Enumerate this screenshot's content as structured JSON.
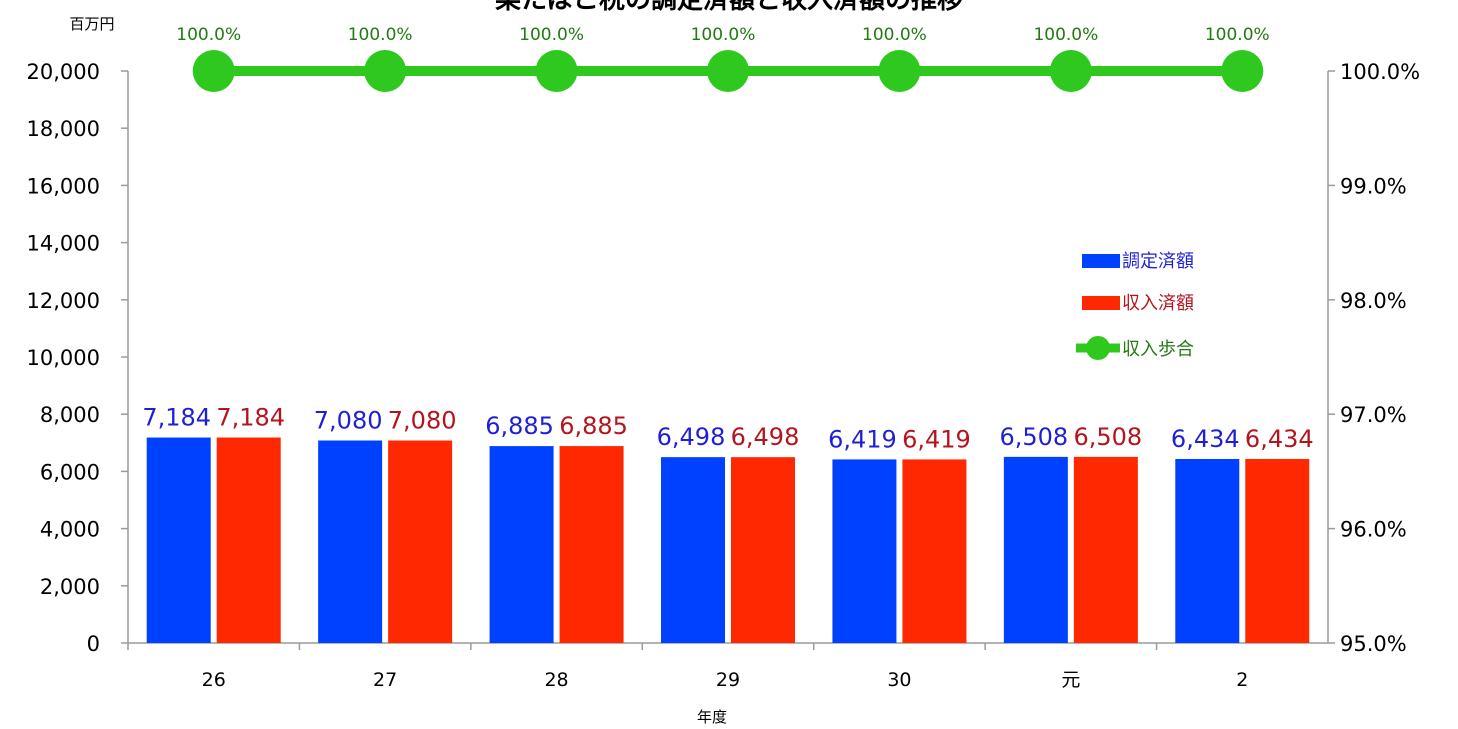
{
  "chart_data": {
    "type": "bar",
    "title": "栗たばこ税の調定済額と収入済額の推移",
    "xlabel": "年度",
    "ylabel": "百万円",
    "categories": [
      "26",
      "27",
      "28",
      "29",
      "30",
      "元",
      "2"
    ],
    "ylim": [
      0,
      20000
    ],
    "yticks": [
      0,
      2000,
      4000,
      6000,
      8000,
      10000,
      12000,
      14000,
      16000,
      18000,
      20000
    ],
    "y2lim": [
      95.0,
      100.0
    ],
    "y2ticks": [
      95.0,
      96.0,
      97.0,
      98.0,
      99.0,
      100.0
    ],
    "grid": false,
    "legend_position": "right",
    "series": [
      {
        "name": "調定済額",
        "kind": "bar",
        "color": "#0041ff",
        "label_color": "#1f1fd6",
        "values": [
          7184,
          7080,
          6885,
          6498,
          6419,
          6508,
          6434
        ]
      },
      {
        "name": "収入済額",
        "kind": "bar",
        "color": "#ff2800",
        "label_color": "#b4141e",
        "values": [
          7184,
          7080,
          6885,
          6498,
          6419,
          6508,
          6434
        ]
      },
      {
        "name": "収入歩合",
        "kind": "line",
        "axis": "right",
        "color": "#2ec81e",
        "label_color": "#217a12",
        "values": [
          100.0,
          100.0,
          100.0,
          100.0,
          100.0,
          100.0,
          100.0
        ]
      }
    ]
  }
}
